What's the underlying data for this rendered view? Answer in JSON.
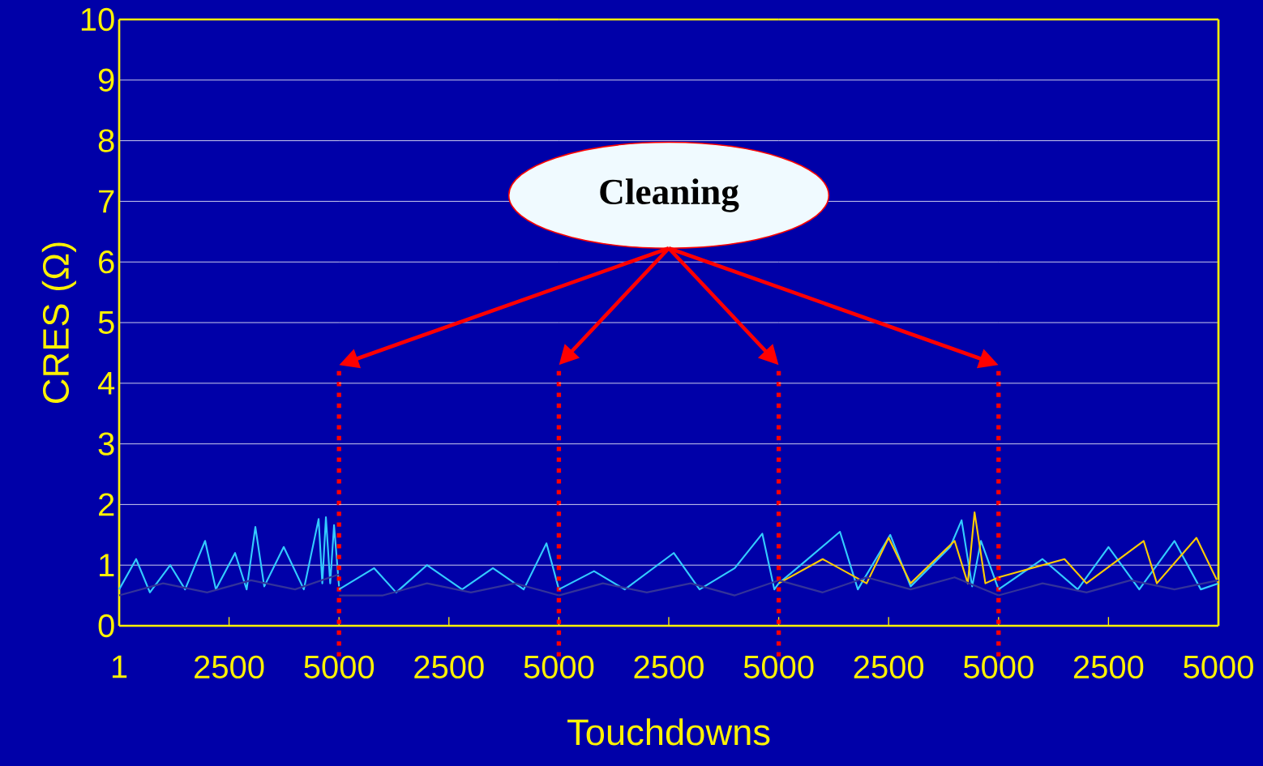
{
  "chart_data": [
    {
      "type": "line",
      "ylabel": "CRES (Ω)",
      "xlim": [
        1,
        5000
      ],
      "ylim": [
        0,
        10
      ],
      "xticks": [
        1,
        2500,
        5000
      ],
      "yticks": [
        0,
        1,
        2,
        3,
        4,
        5,
        6,
        7,
        8,
        9,
        10
      ],
      "grid": "y",
      "ref_lines": [
        {
          "axis": "x",
          "value": 5000,
          "color": "#ff0000",
          "line_style": "dotted"
        }
      ],
      "series": [
        {
          "color": "#33ccff",
          "x": [
            1,
            387,
            700,
            1162,
            1500,
            1955,
            2200,
            2637,
            2900,
            3098,
            3300,
            3743,
            4200,
            4536,
            4620,
            4702,
            4800,
            4887,
            5000
          ],
          "values": [
            0.6,
            1.1,
            0.55,
            1.0,
            0.6,
            1.4,
            0.6,
            1.2,
            0.6,
            1.63,
            0.65,
            1.3,
            0.6,
            1.76,
            0.7,
            1.79,
            0.7,
            1.66,
            0.65
          ]
        },
        {
          "color": "#333399",
          "x": [
            1,
            1000,
            2000,
            3000,
            4000,
            5000
          ],
          "values": [
            0.5,
            0.7,
            0.55,
            0.75,
            0.6,
            0.85
          ]
        }
      ]
    },
    {
      "type": "line",
      "xlim": [
        1,
        5000
      ],
      "ylim": [
        0,
        10
      ],
      "tick_labels": "x",
      "xticks": [
        2500,
        5000
      ],
      "yticks": [
        0,
        1,
        2,
        3,
        4,
        5,
        6,
        7,
        8,
        9,
        10
      ],
      "grid": "y",
      "ref_lines": [
        {
          "axis": "x",
          "value": 5000,
          "color": "#ff0000",
          "line_style": "dotted"
        }
      ],
      "series": [
        {
          "color": "#33ccff",
          "x": [
            1,
            800,
            1300,
            2000,
            2800,
            3500,
            4200,
            4718,
            5000
          ],
          "values": [
            0.6,
            0.95,
            0.55,
            1.0,
            0.6,
            0.95,
            0.6,
            1.36,
            0.6
          ]
        },
        {
          "color": "#333399",
          "x": [
            1,
            1000,
            2000,
            3000,
            4000,
            5000
          ],
          "values": [
            0.5,
            0.5,
            0.7,
            0.55,
            0.7,
            0.5
          ]
        }
      ]
    },
    {
      "type": "line",
      "xlabel": "Touchdowns",
      "annotations": [
        "Cleaning"
      ],
      "xlim": [
        1,
        5000
      ],
      "ylim": [
        0,
        10
      ],
      "tick_labels": "x",
      "xticks": [
        2500,
        5000
      ],
      "yticks": [
        0,
        1,
        2,
        3,
        4,
        5,
        6,
        7,
        8,
        9,
        10
      ],
      "grid": "y",
      "ref_lines": [
        {
          "axis": "x",
          "value": 5000,
          "color": "#ff0000",
          "line_style": "dotted"
        }
      ],
      "series": [
        {
          "color": "#33ccff",
          "x": [
            1,
            800,
            1500,
            2613,
            3200,
            4000,
            4626,
            4900,
            5000
          ],
          "values": [
            0.6,
            0.9,
            0.6,
            1.2,
            0.6,
            0.95,
            1.52,
            0.6,
            0.7
          ]
        },
        {
          "color": "#333399",
          "x": [
            1,
            1000,
            2000,
            3000,
            4000,
            5000
          ],
          "values": [
            0.5,
            0.7,
            0.55,
            0.7,
            0.5,
            0.75
          ]
        }
      ]
    },
    {
      "type": "line",
      "xlim": [
        1,
        5000
      ],
      "ylim": [
        0,
        10
      ],
      "tick_labels": "x",
      "xticks": [
        2500,
        5000
      ],
      "yticks": [
        0,
        1,
        2,
        3,
        4,
        5,
        6,
        7,
        8,
        9,
        10
      ],
      "grid": "y",
      "ref_lines": [
        {
          "axis": "x",
          "value": 5000,
          "color": "#ff0000",
          "line_style": "dotted"
        }
      ],
      "series": [
        {
          "color": "#33ccff",
          "x": [
            1,
            500,
            1393,
            1800,
            2537,
            3000,
            3900,
            4159,
            4400,
            4600,
            5000
          ],
          "values": [
            0.7,
            1.0,
            1.55,
            0.6,
            1.5,
            0.65,
            1.3,
            1.74,
            0.65,
            1.4,
            0.6
          ]
        },
        {
          "color": "#ffcc00",
          "x": [
            1,
            1000,
            2000,
            2500,
            3000,
            4000,
            4300,
            4454,
            4700,
            5000
          ],
          "values": [
            0.7,
            1.1,
            0.7,
            1.45,
            0.7,
            1.4,
            0.7,
            1.87,
            0.7,
            0.8
          ]
        },
        {
          "color": "#333399",
          "x": [
            1,
            1000,
            2000,
            3000,
            4000,
            5000
          ],
          "values": [
            0.75,
            0.55,
            0.8,
            0.6,
            0.8,
            0.5
          ]
        }
      ]
    },
    {
      "type": "line",
      "xlim": [
        1,
        5000
      ],
      "ylim": [
        0,
        10
      ],
      "tick_labels": "x",
      "xticks": [
        2500,
        5000
      ],
      "yticks": [
        0,
        1,
        2,
        3,
        4,
        5,
        6,
        7,
        8,
        9,
        10
      ],
      "grid": "y",
      "series": [
        {
          "color": "#33ccff",
          "x": [
            1,
            1000,
            1800,
            2500,
            3200,
            4000,
            4600,
            5000
          ],
          "values": [
            0.6,
            1.1,
            0.6,
            1.3,
            0.6,
            1.4,
            0.6,
            0.7
          ]
        },
        {
          "color": "#ffcc00",
          "x": [
            1,
            500,
            1500,
            2000,
            3300,
            3600,
            4500,
            5000
          ],
          "values": [
            0.8,
            0.9,
            1.1,
            0.7,
            1.4,
            0.7,
            1.45,
            0.7
          ]
        },
        {
          "color": "#333399",
          "x": [
            1,
            1000,
            2000,
            3000,
            4000,
            5000
          ],
          "values": [
            0.5,
            0.7,
            0.55,
            0.75,
            0.6,
            0.75
          ]
        }
      ]
    }
  ]
}
